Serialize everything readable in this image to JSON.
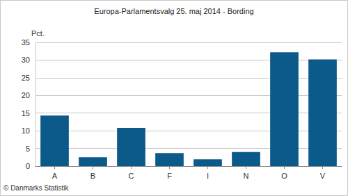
{
  "chart_data": {
    "type": "bar",
    "title": "Europa-Parlamentsvalg 25. maj 2014 - Bording",
    "y_label": "Pct.",
    "source": "© Danmarks Statistik",
    "categories": [
      "A",
      "B",
      "C",
      "F",
      "I",
      "N",
      "O",
      "V"
    ],
    "values": [
      14.3,
      2.5,
      10.8,
      3.7,
      1.9,
      4.0,
      32.2,
      30.2
    ],
    "color": "#0b5a8a",
    "ylim": [
      0,
      35
    ],
    "yticks": [
      0,
      5,
      10,
      15,
      20,
      25,
      30,
      35
    ],
    "grid": true
  }
}
